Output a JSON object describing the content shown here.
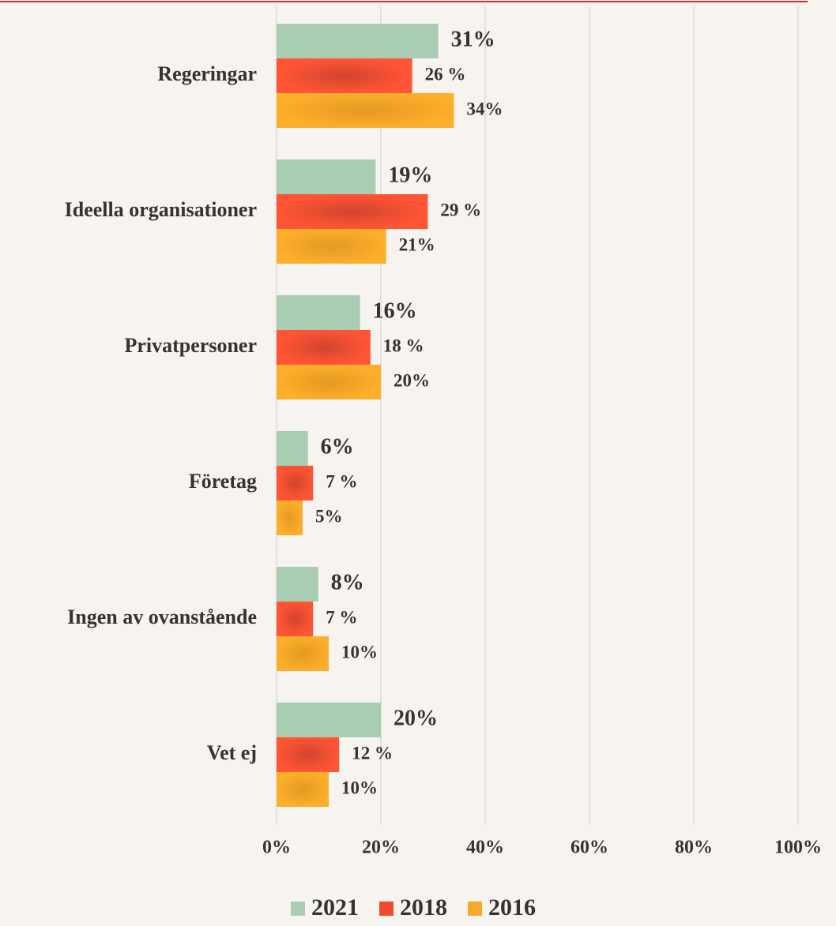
{
  "chart_data": {
    "type": "barh",
    "categories": [
      "Regeringar",
      "Ideella organisationer",
      "Privatpersoner",
      "Företag",
      "Ingen av ovanstående",
      "Vet ej"
    ],
    "series": [
      {
        "name": "2021",
        "color": "#a9cdb3",
        "values": [
          31,
          19,
          16,
          6,
          8,
          20
        ],
        "value_labels": [
          "31%",
          "19%",
          "16%",
          "6%",
          "8%",
          "20%"
        ]
      },
      {
        "name": "2018",
        "color": "#ee4a30",
        "values": [
          26,
          29,
          18,
          7,
          7,
          12
        ],
        "value_labels": [
          "26 %",
          "29 %",
          "18 %",
          "7 %",
          "7 %",
          "12 %"
        ]
      },
      {
        "name": "2016",
        "color": "#f7a928",
        "values": [
          34,
          21,
          20,
          5,
          10,
          10
        ],
        "value_labels": [
          "34%",
          "21%",
          "20%",
          "5%",
          "10%",
          "10%"
        ]
      }
    ],
    "xlim": [
      0,
      100
    ],
    "xticks": [
      {
        "value": 0,
        "label": "0%"
      },
      {
        "value": 20,
        "label": "20%"
      },
      {
        "value": 40,
        "label": "40%"
      },
      {
        "value": 60,
        "label": "60%"
      },
      {
        "value": 80,
        "label": "80%"
      },
      {
        "value": 100,
        "label": "100%"
      }
    ],
    "grid": true,
    "legend": "bottom"
  }
}
